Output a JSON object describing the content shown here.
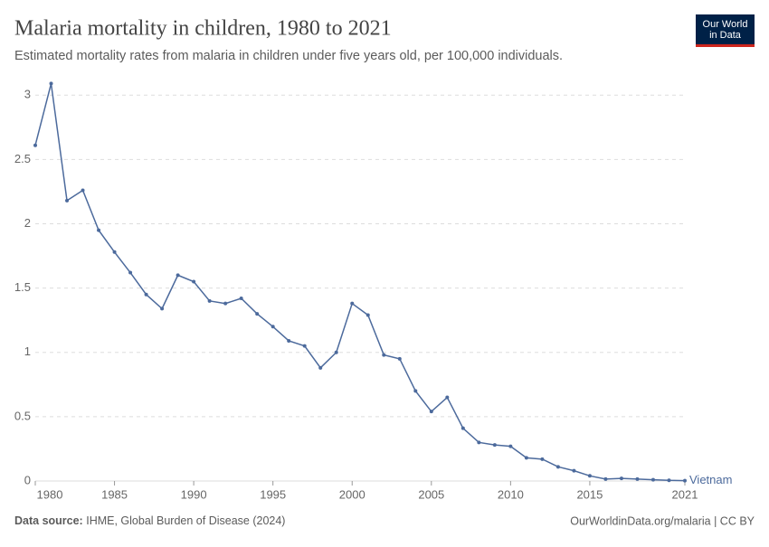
{
  "chart_data": {
    "type": "line",
    "title": "Malaria mortality in children, 1980 to 2021",
    "subtitle": "Estimated mortality rates from malaria in children under five years old, per 100,000 individuals.",
    "logo": "Our World in Data",
    "source_label": "Data source:",
    "source": "IHME, Global Burden of Disease (2024)",
    "footer_right": "OurWorldinData.org/malaria | CC BY",
    "x": [
      1980,
      1981,
      1982,
      1983,
      1984,
      1985,
      1986,
      1987,
      1988,
      1989,
      1990,
      1991,
      1992,
      1993,
      1994,
      1995,
      1996,
      1997,
      1998,
      1999,
      2000,
      2001,
      2002,
      2003,
      2004,
      2005,
      2006,
      2007,
      2008,
      2009,
      2010,
      2011,
      2012,
      2013,
      2014,
      2015,
      2016,
      2017,
      2018,
      2019,
      2020,
      2021
    ],
    "series": [
      {
        "name": "Vietnam",
        "color": "#4c6a9c",
        "values": [
          2.61,
          3.09,
          2.18,
          2.26,
          1.95,
          1.78,
          1.62,
          1.45,
          1.34,
          1.6,
          1.55,
          1.4,
          1.38,
          1.42,
          1.3,
          1.2,
          1.09,
          1.05,
          0.88,
          1.0,
          1.38,
          1.29,
          0.98,
          0.95,
          0.7,
          0.54,
          0.65,
          0.41,
          0.3,
          0.28,
          0.27,
          0.18,
          0.17,
          0.11,
          0.08,
          0.04,
          0.015,
          0.02,
          0.015,
          0.01,
          0.005,
          0.003
        ]
      }
    ],
    "xlim": [
      1980,
      2021
    ],
    "xticks": [
      1980,
      1985,
      1990,
      1995,
      2000,
      2005,
      2010,
      2015,
      2021
    ],
    "ylim": [
      0,
      3.1
    ],
    "yticks": [
      0,
      0.5,
      1,
      1.5,
      2,
      2.5,
      3
    ],
    "grid": true
  }
}
